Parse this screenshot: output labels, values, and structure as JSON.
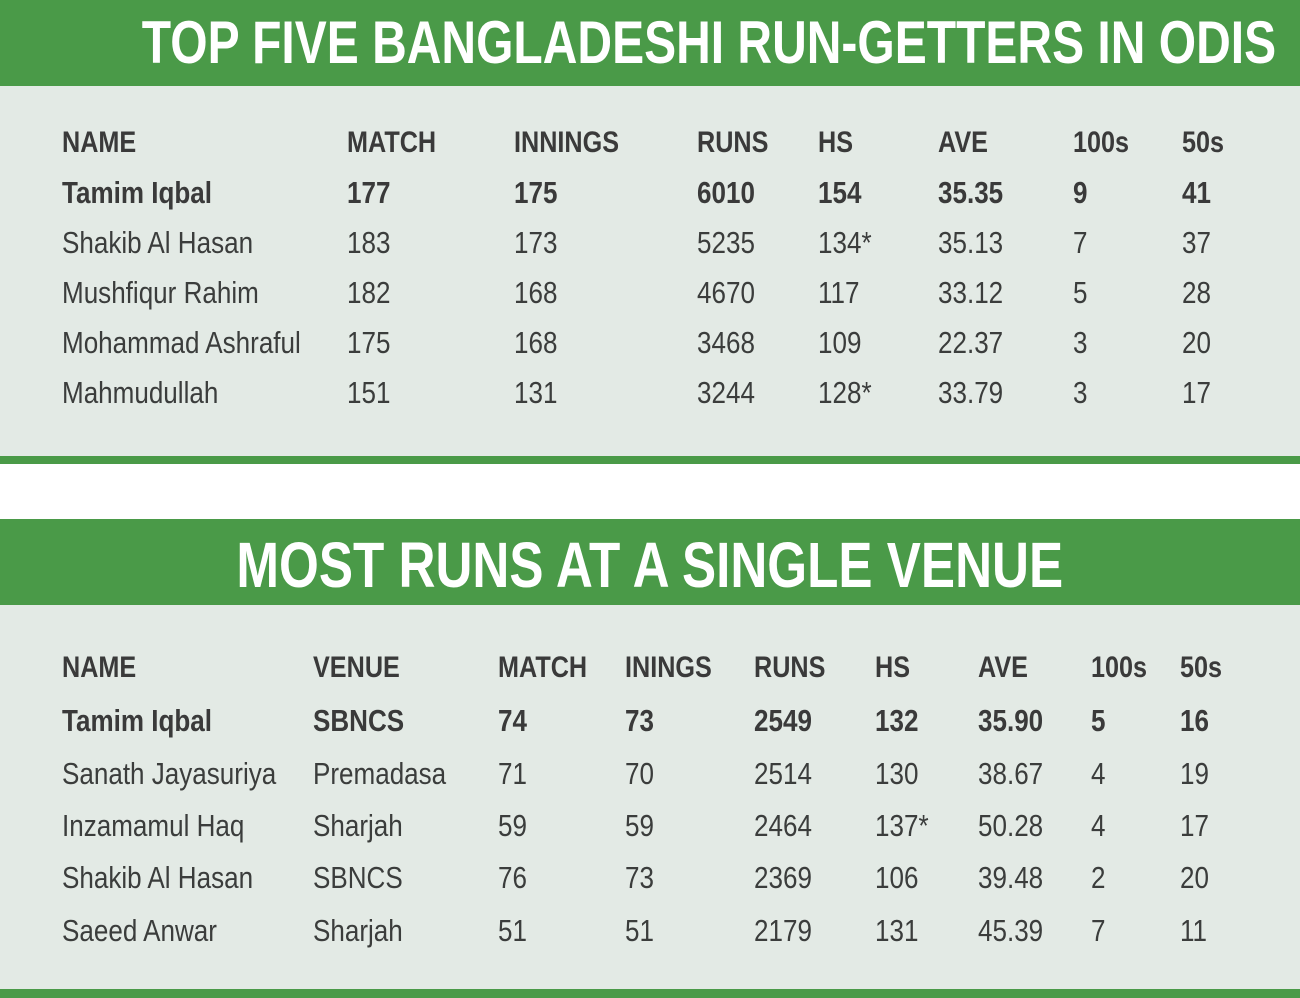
{
  "table1": {
    "title": "TOP FIVE BANGLADESHI RUN-GETTERS IN ODIS",
    "headers": [
      "NAME",
      "MATCH",
      "INNINGS",
      "RUNS",
      "HS",
      "AVE",
      "100s",
      "50s"
    ],
    "rows": [
      [
        "Tamim Iqbal",
        "177",
        "175",
        "6010",
        "154",
        "35.35",
        "9",
        "41"
      ],
      [
        "Shakib Al Hasan",
        "183",
        "173",
        "5235",
        "134*",
        "35.13",
        "7",
        "37"
      ],
      [
        "Mushfiqur Rahim",
        "182",
        "168",
        "4670",
        "117",
        "33.12",
        "5",
        "28"
      ],
      [
        "Mohammad Ashraful",
        "175",
        "168",
        "3468",
        "109",
        "22.37",
        "3",
        "20"
      ],
      [
        "Mahmudullah",
        "151",
        "131",
        "3244",
        "128*",
        "33.79",
        "3",
        "17"
      ]
    ]
  },
  "table2": {
    "title": "MOST RUNS AT A SINGLE VENUE",
    "headers": [
      "NAME",
      "VENUE",
      "MATCH",
      "ININGS",
      "RUNS",
      "HS",
      "AVE",
      "100s",
      "50s"
    ],
    "rows": [
      [
        "Tamim Iqbal",
        "SBNCS",
        "74",
        "73",
        "2549",
        "132",
        "35.90",
        "5",
        "16"
      ],
      [
        "Sanath Jayasuriya",
        "Premadasa",
        "71",
        "70",
        "2514",
        "130",
        "38.67",
        "4",
        "19"
      ],
      [
        "Inzamamul Haq",
        "Sharjah",
        "59",
        "59",
        "2464",
        "137*",
        "50.28",
        "4",
        "17"
      ],
      [
        "Shakib Al Hasan",
        "SBNCS",
        "76",
        "73",
        "2369",
        "106",
        "39.48",
        "2",
        "20"
      ],
      [
        "Saeed Anwar",
        "Sharjah",
        "51",
        "51",
        "2179",
        "131",
        "45.39",
        "7",
        "11"
      ]
    ]
  },
  "colors": {
    "accent": "#4a9a48",
    "panel": "#e3eae5",
    "text": "#3b3d3c"
  }
}
